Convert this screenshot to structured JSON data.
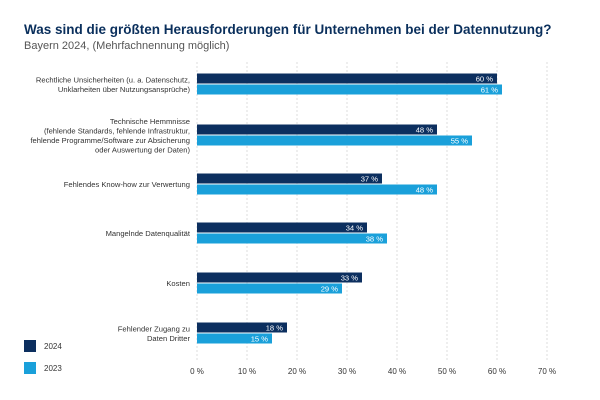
{
  "chart_data": {
    "type": "bar",
    "orientation": "horizontal",
    "title": "Was sind die größten Herausforderungen für Unternehmen bei der Datennutzung?",
    "subtitle": "Bayern 2024, (Mehrfachnennung möglich)",
    "categories": [
      [
        "Rechtliche Unsicherheiten (u. a. Datenschutz,",
        "Unklarheiten über Nutzungsansprüche)"
      ],
      [
        "Technische Hemmnisse",
        "(fehlende Standards, fehlende Infrastruktur,",
        "fehlende Programme/Software zur Absicherung",
        "oder Auswertung der Daten)"
      ],
      [
        "Fehlendes Know-how zur Verwertung"
      ],
      [
        "Mangelnde Datenqualität"
      ],
      [
        "Kosten"
      ],
      [
        "Fehlender Zugang zu",
        "Daten Dritter"
      ]
    ],
    "series": [
      {
        "name": "2024",
        "values": [
          60,
          48,
          37,
          34,
          33,
          18
        ],
        "labels": [
          "60 %",
          "48 %",
          "37 %",
          "34 %",
          "33 %",
          "18 %"
        ],
        "color": "#0c2f5f"
      },
      {
        "name": "2023",
        "values": [
          61,
          55,
          48,
          38,
          29,
          15
        ],
        "labels": [
          "61 %",
          "55 %",
          "48 %",
          "38 %",
          "29 %",
          "15 %"
        ],
        "color": "#1aa0da"
      }
    ],
    "xlim": [
      0,
      70
    ],
    "xticks": [
      0,
      10,
      20,
      30,
      40,
      50,
      60,
      70
    ],
    "xtick_labels": [
      "0 %",
      "10 %",
      "20 %",
      "30 %",
      "40 %",
      "50 %",
      "60 %",
      "70 %"
    ],
    "grid": true,
    "legend_position": "bottom-left"
  }
}
